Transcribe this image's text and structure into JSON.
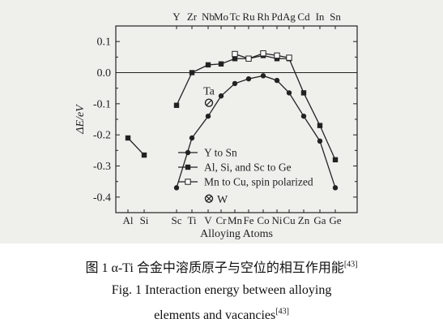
{
  "chart_data": {
    "type": "line",
    "ylabel": "ΔE/eV",
    "xlabel": "Alloying Atoms",
    "ylim": [
      -0.45,
      0.15
    ],
    "yticks": [
      "0.1",
      "0.0",
      "-0.1",
      "-0.2",
      "-0.3",
      "-0.4"
    ],
    "bottom_categories": [
      "Al",
      "Si",
      "Sc",
      "Ti",
      "V",
      "Cr",
      "Mn",
      "Fe",
      "Co",
      "Ni",
      "Cu",
      "Zn",
      "Ga",
      "Ge"
    ],
    "top_categories": [
      "Y",
      "Zr",
      "Nb",
      "Mo",
      "Tc",
      "Ru",
      "Rh",
      "Pd",
      "Ag",
      "Cd",
      "In",
      "Sn"
    ],
    "series": [
      {
        "name": "Y to Sn",
        "marker": "filled-circle",
        "axis": "top",
        "x": [
          "Y",
          "Zr",
          "Nb",
          "Mo",
          "Tc",
          "Ru",
          "Rh",
          "Pd",
          "Ag",
          "Cd",
          "In",
          "Sn"
        ],
        "y": [
          -0.37,
          -0.21,
          -0.14,
          -0.075,
          -0.035,
          -0.02,
          -0.01,
          -0.025,
          -0.065,
          -0.14,
          -0.22,
          -0.37
        ]
      },
      {
        "name": "Al, Si, and Sc to Ge",
        "marker": "filled-square",
        "axis": "bottom",
        "segments": [
          {
            "x": [
              "Al",
              "Si"
            ],
            "y": [
              -0.21,
              -0.265
            ]
          },
          {
            "x": [
              "Sc",
              "Ti",
              "V",
              "Cr",
              "Mn",
              "Fe",
              "Co",
              "Ni",
              "Cu",
              "Zn",
              "Ga",
              "Ge"
            ],
            "y": [
              -0.105,
              0.0,
              0.025,
              0.028,
              0.045,
              0.045,
              0.055,
              0.045,
              0.045,
              -0.065,
              -0.17,
              -0.28
            ]
          }
        ]
      },
      {
        "name": "Mn to Cu, spin polarized",
        "marker": "open-square",
        "axis": "bottom",
        "x": [
          "Mn",
          "Fe",
          "Co",
          "Ni",
          "Cu"
        ],
        "y": [
          0.06,
          0.045,
          0.062,
          0.055,
          0.048
        ]
      }
    ],
    "annotations": [
      {
        "label": "Ta",
        "marker": "circle-slash",
        "x_between": [
          "V",
          "Cr"
        ],
        "y": -0.097
      },
      {
        "label": "W",
        "marker": "circle-cross",
        "x_between": [
          "V",
          "Cr"
        ],
        "y": -0.405
      }
    ]
  },
  "captions": {
    "cn_main": "图 1   α-Ti 合金中溶质原子与空位的相互作用能",
    "cn_ref": "[43]",
    "en_line1": "Fig. 1    Interaction energy between alloying",
    "en_line2": "elements and vacancies",
    "en_ref": "[43]"
  }
}
